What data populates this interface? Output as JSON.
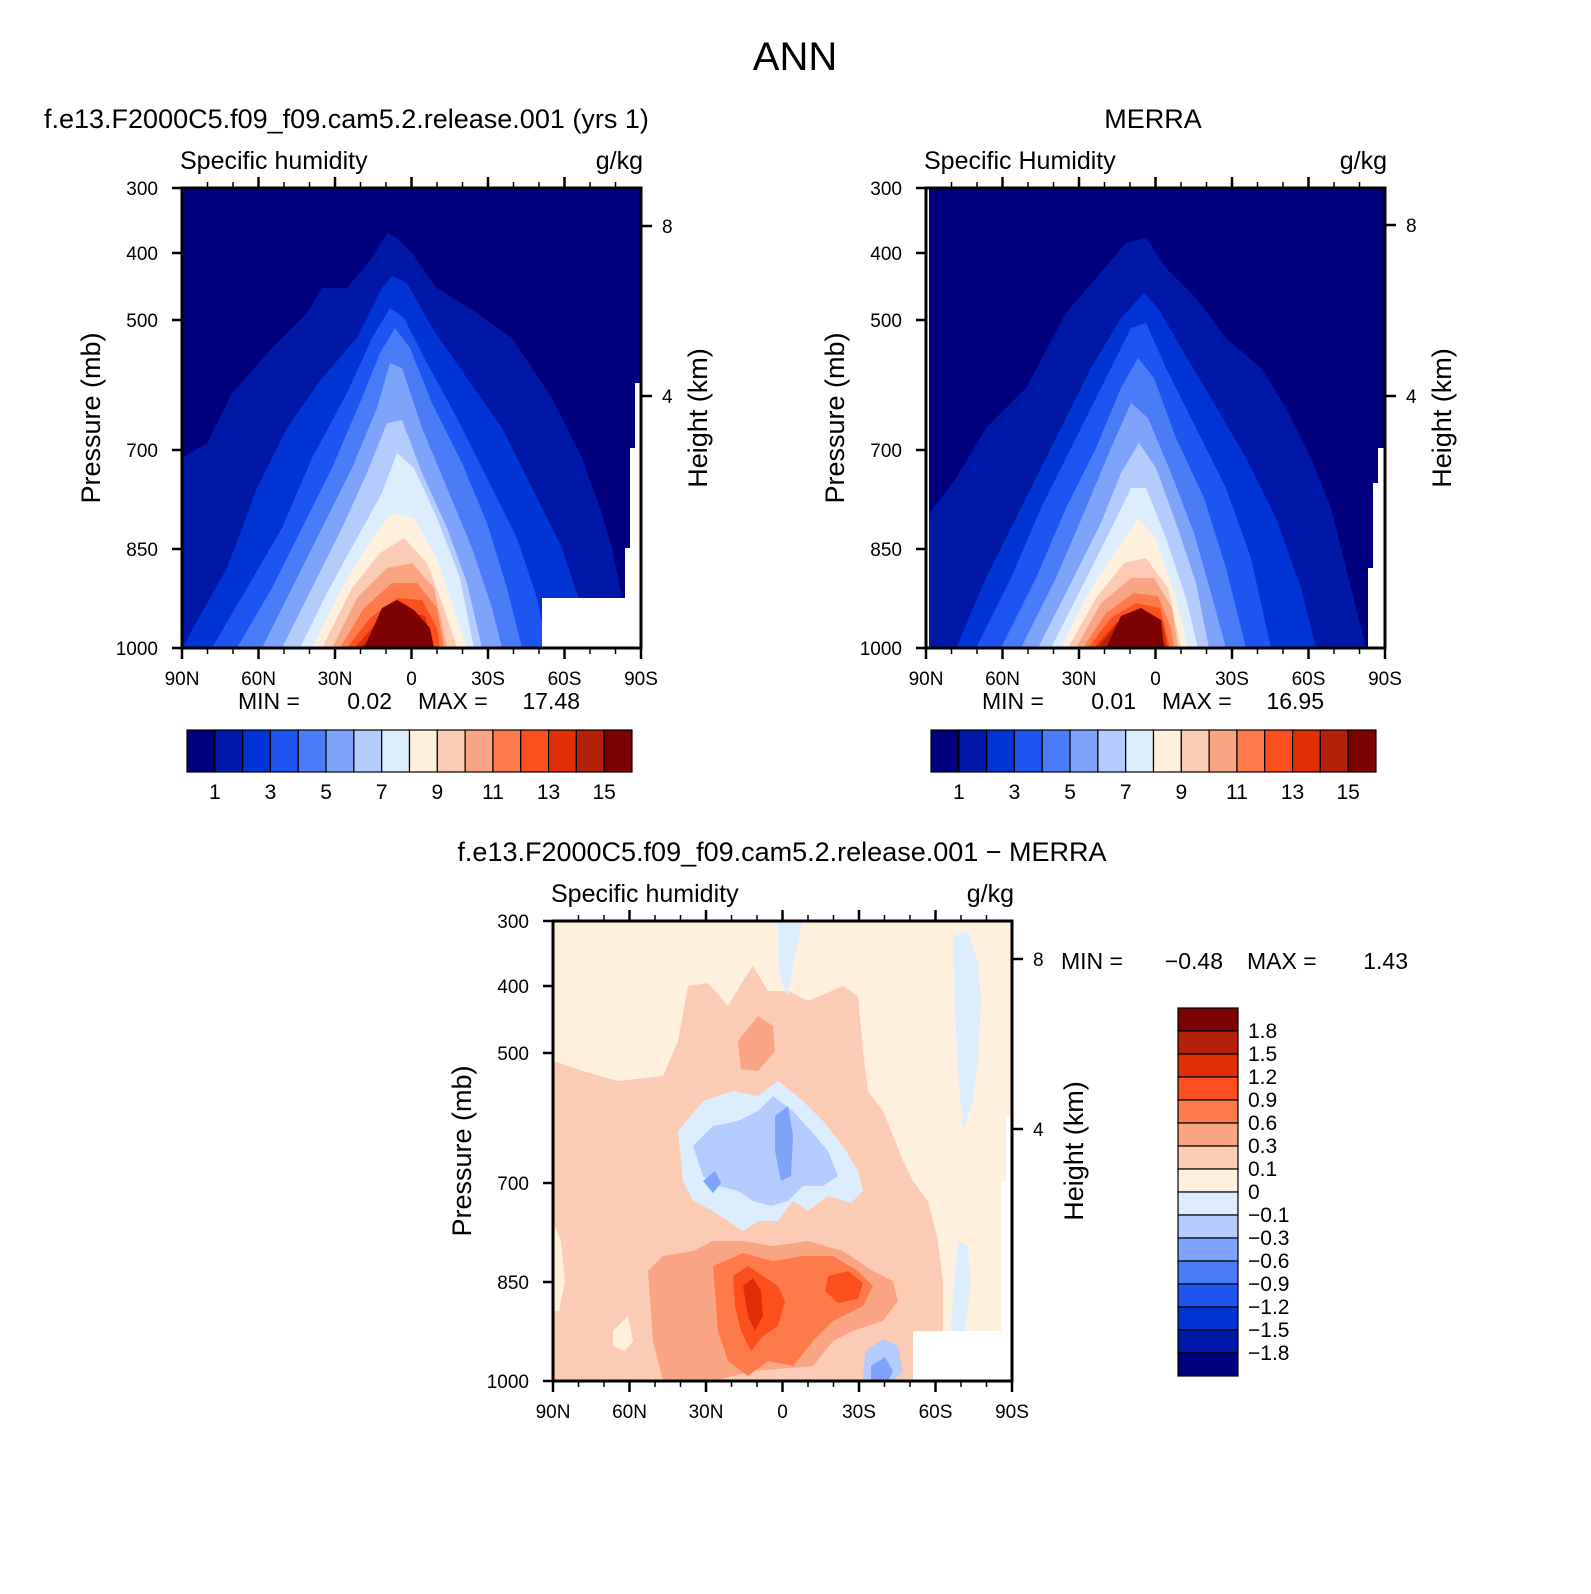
{
  "main_title": "ANN",
  "panels": {
    "model": {
      "title": "f.e13.F2000C5.f09_f09.cam5.2.release.001 (yrs 1)",
      "variable": "Specific humidity",
      "units": "g/kg",
      "stats": {
        "min_label": "MIN =",
        "min": "0.02",
        "max_label": "MAX =",
        "max": "17.48"
      }
    },
    "obs": {
      "title": "MERRA",
      "variable": "Specific Humidity",
      "units": "g/kg",
      "stats": {
        "min_label": "MIN =",
        "min": "0.01",
        "max_label": "MAX =",
        "max": "16.95"
      }
    },
    "diff": {
      "title": "f.e13.F2000C5.f09_f09.cam5.2.release.001 − MERRA",
      "variable": "Specific humidity",
      "units": "g/kg",
      "stats": {
        "min_label": "MIN =",
        "min": "−0.48",
        "max_label": "MAX =",
        "max": "1.43"
      }
    }
  },
  "axes": {
    "ylabel": "Pressure (mb)",
    "y2label": "Height (km)",
    "pressure_ticks": [
      "300",
      "400",
      "500",
      "700",
      "850",
      "1000"
    ],
    "height_ticks": [
      "8",
      "4"
    ],
    "lat_ticks": [
      "90N",
      "60N",
      "30N",
      "0",
      "30S",
      "60S",
      "90S"
    ]
  },
  "colorbars": {
    "abs": {
      "colors": [
        "#00007f",
        "#0018a8",
        "#0034d4",
        "#1e55f0",
        "#4a7cf7",
        "#7da3fa",
        "#b3ccfd",
        "#dcedfe",
        "#fff0dd",
        "#fccbb4",
        "#f9a584",
        "#ff7a4a",
        "#fc4f1e",
        "#e02e07",
        "#b52008",
        "#7d0303"
      ],
      "labels": [
        "1",
        "3",
        "5",
        "7",
        "9",
        "11",
        "13",
        "15"
      ]
    },
    "diff": {
      "colors": [
        "#7d0303",
        "#b52008",
        "#e02e07",
        "#fc4f1e",
        "#ff7a4a",
        "#f9a584",
        "#fccbb4",
        "#fff0dd",
        "#dcedfe",
        "#b3ccfd",
        "#7da3fa",
        "#4a7cf7",
        "#1e55f0",
        "#0034d4",
        "#0018a8",
        "#00007f"
      ],
      "labels": [
        "1.8",
        "1.5",
        "1.2",
        "0.9",
        "0.6",
        "0.3",
        "0.1",
        "0",
        "−0.1",
        "−0.3",
        "−0.6",
        "−0.9",
        "−1.2",
        "−1.5",
        "−1.8"
      ]
    }
  },
  "chart_data": [
    {
      "type": "heatmap",
      "title": "f.e13.F2000C5.f09_f09.cam5.2.release.001 (yrs 1)",
      "variable": "Specific humidity",
      "units": "g/kg",
      "xlabel": "",
      "ylabel": "Pressure (mb)",
      "y2label": "Height (km)",
      "x_ticks": [
        "90N",
        "60N",
        "30N",
        "0",
        "30S",
        "60S",
        "90S"
      ],
      "y_ticks": [
        300,
        400,
        500,
        700,
        850,
        1000
      ],
      "y_scale": "log",
      "ylim": [
        1000,
        300
      ],
      "contour_levels": [
        1,
        2,
        3,
        4,
        5,
        6,
        7,
        8,
        9,
        10,
        11,
        12,
        13,
        14,
        15
      ],
      "min": 0.02,
      "max": 17.48
    },
    {
      "type": "heatmap",
      "title": "MERRA",
      "variable": "Specific Humidity",
      "units": "g/kg",
      "xlabel": "",
      "ylabel": "Pressure (mb)",
      "y2label": "Height (km)",
      "x_ticks": [
        "90N",
        "60N",
        "30N",
        "0",
        "30S",
        "60S",
        "90S"
      ],
      "y_ticks": [
        300,
        400,
        500,
        700,
        850,
        1000
      ],
      "y_scale": "log",
      "ylim": [
        1000,
        300
      ],
      "contour_levels": [
        1,
        2,
        3,
        4,
        5,
        6,
        7,
        8,
        9,
        10,
        11,
        12,
        13,
        14,
        15
      ],
      "min": 0.01,
      "max": 16.95
    },
    {
      "type": "heatmap",
      "title": "f.e13.F2000C5.f09_f09.cam5.2.release.001 − MERRA",
      "variable": "Specific humidity",
      "units": "g/kg",
      "xlabel": "",
      "ylabel": "Pressure (mb)",
      "y2label": "Height (km)",
      "x_ticks": [
        "90N",
        "60N",
        "30N",
        "0",
        "30S",
        "60S",
        "90S"
      ],
      "y_ticks": [
        300,
        400,
        500,
        700,
        850,
        1000
      ],
      "y_scale": "log",
      "ylim": [
        1000,
        300
      ],
      "contour_levels": [
        -1.8,
        -1.5,
        -1.2,
        -0.9,
        -0.6,
        -0.3,
        -0.1,
        0,
        0.1,
        0.3,
        0.6,
        0.9,
        1.2,
        1.5,
        1.8
      ],
      "min": -0.48,
      "max": 1.43
    }
  ]
}
